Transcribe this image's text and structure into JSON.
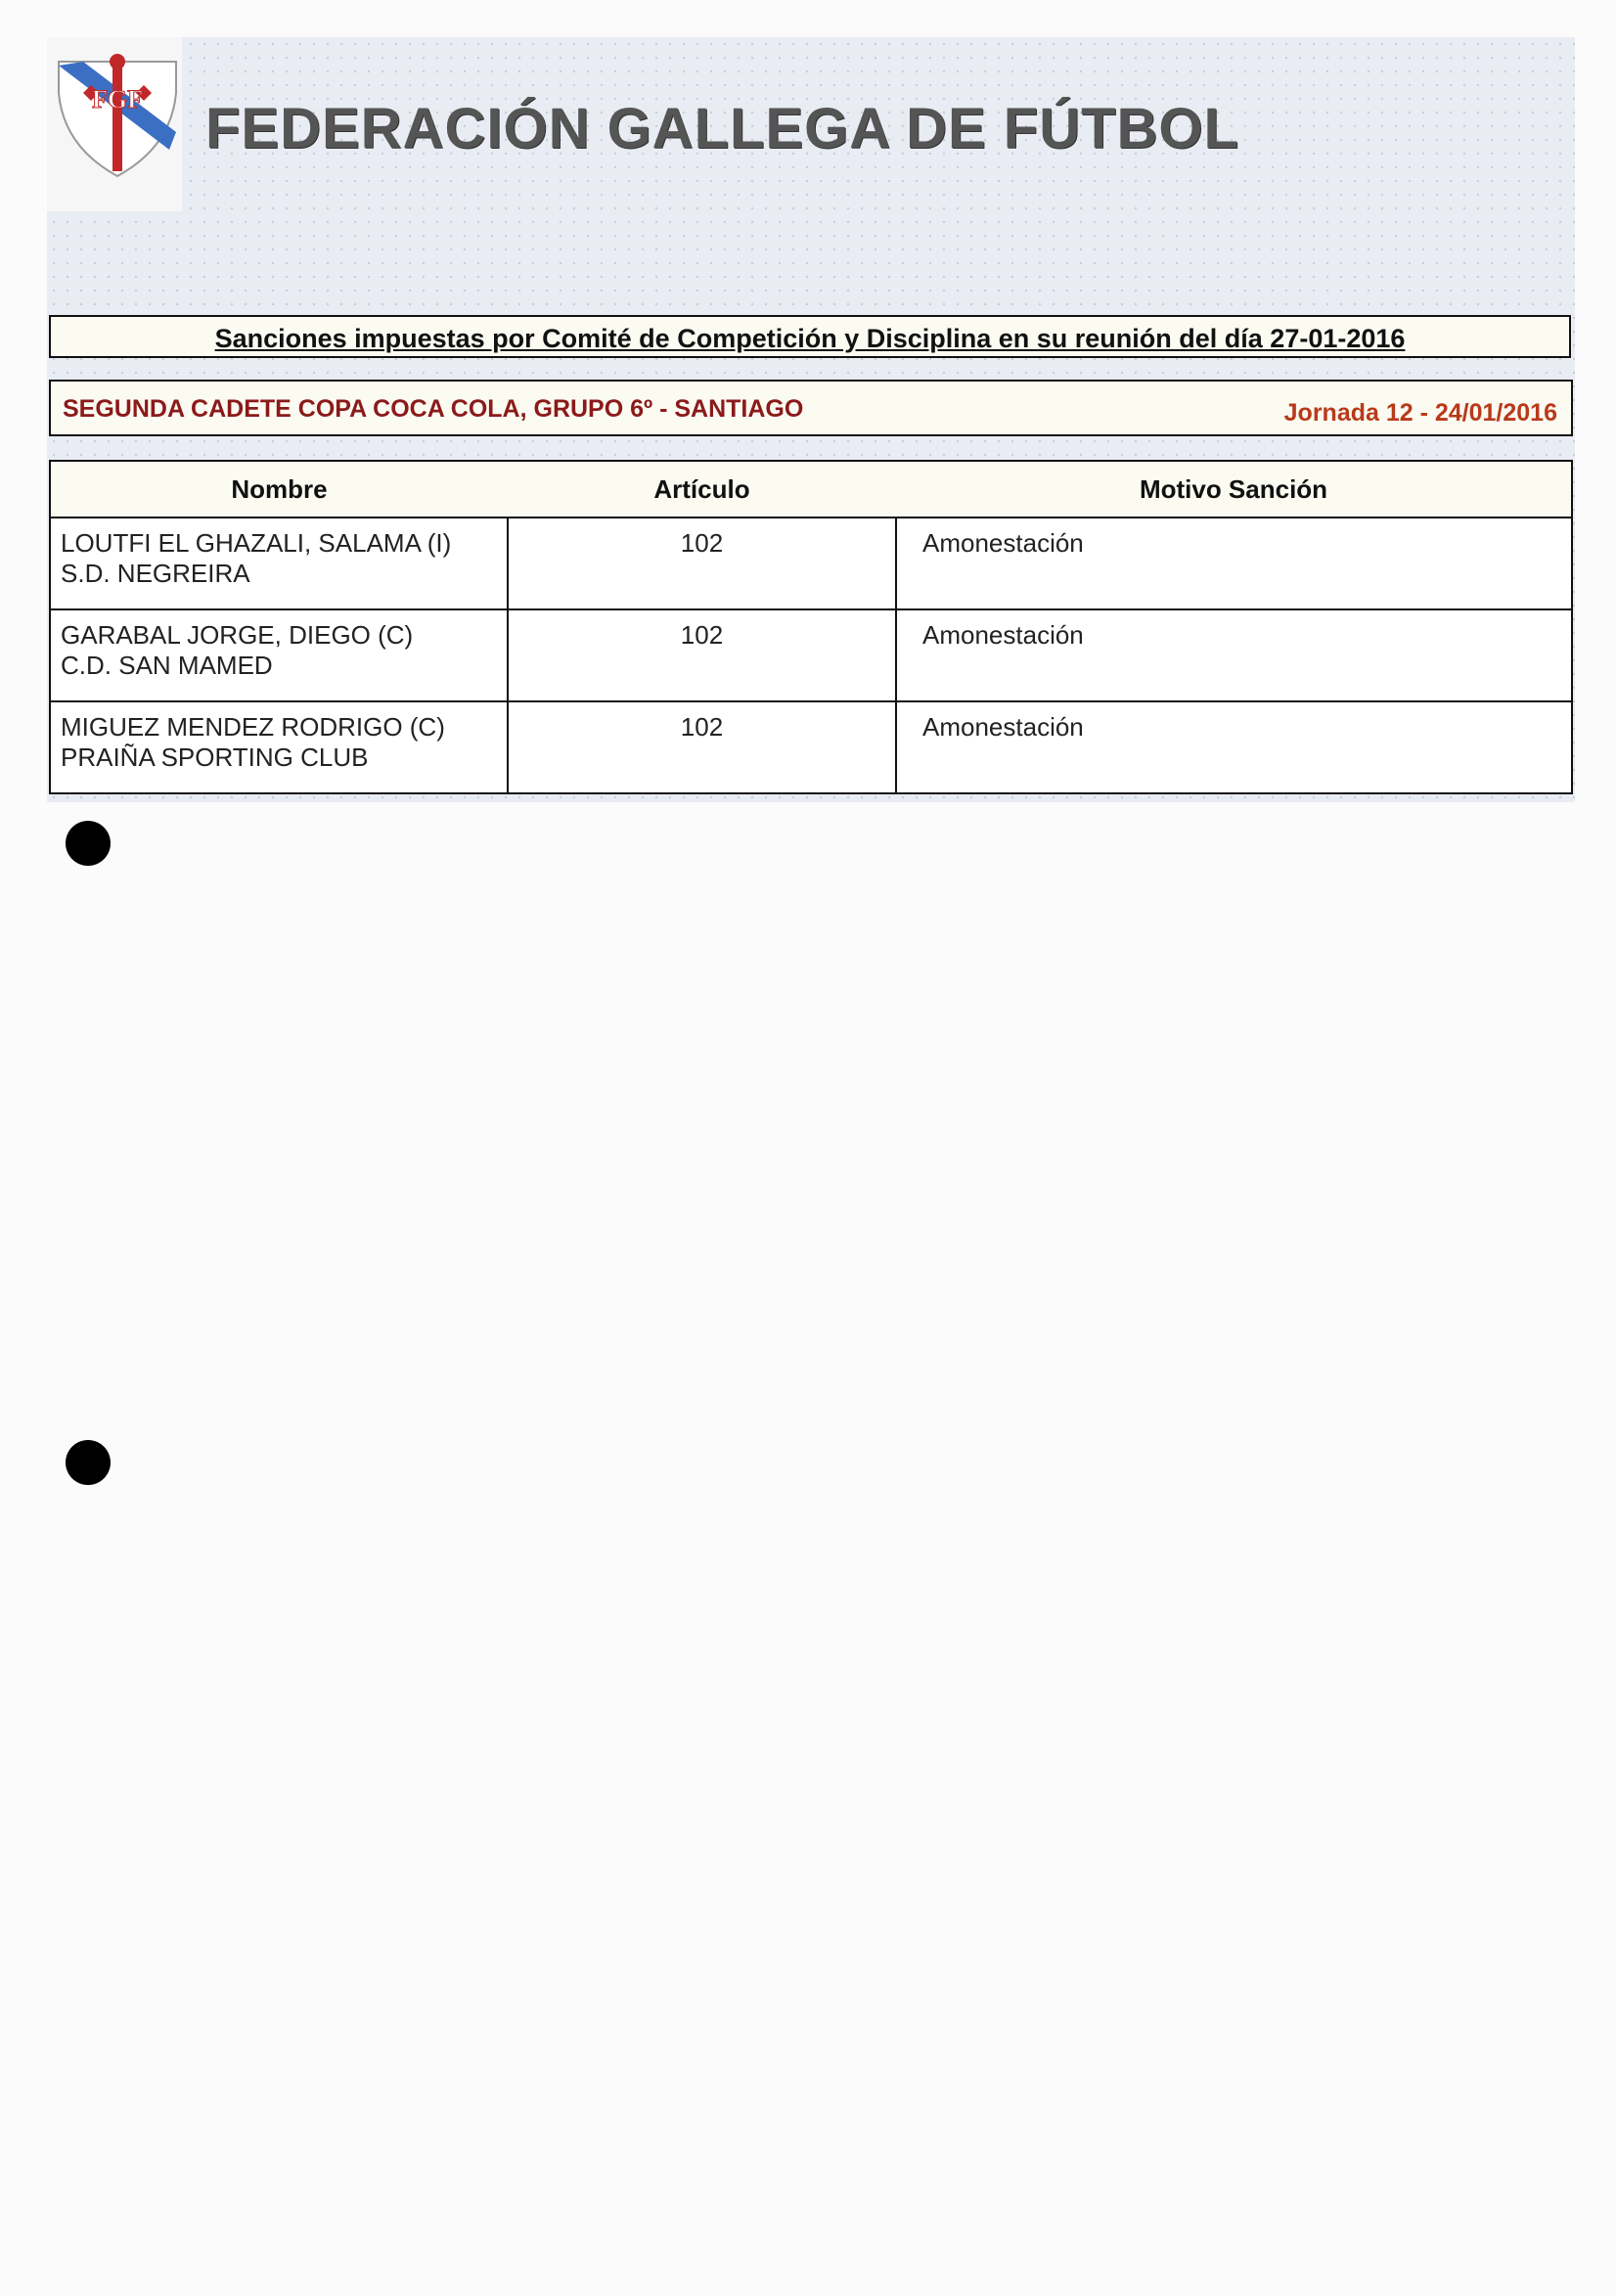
{
  "header": {
    "logo_text": "FGF",
    "title": "FEDERACIÓN GALLEGA DE FÚTBOL"
  },
  "session": {
    "text": "Sanciones impuestas por Comité de Competición y Disciplina en su reunión del día 27-01-2016"
  },
  "competition": {
    "name": "SEGUNDA CADETE COPA COCA COLA,  GRUPO 6º - SANTIAGO",
    "round": "Jornada 12 - 24/01/2016"
  },
  "table": {
    "headers": [
      "Nombre",
      "Artículo",
      "Motivo Sanción"
    ],
    "rows": [
      {
        "player": "LOUTFI EL GHAZALI, SALAMA (I)",
        "club": "S.D. NEGREIRA",
        "article": "102",
        "reason": "Amonestación"
      },
      {
        "player": "GARABAL JORGE, DIEGO (C)",
        "club": "C.D. SAN MAMED",
        "article": "102",
        "reason": "Amonestación"
      },
      {
        "player": "MIGUEZ MENDEZ RODRIGO (C)",
        "club": "PRAIÑA SPORTING CLUB",
        "article": "102",
        "reason": "Amonestación"
      }
    ]
  },
  "colors": {
    "competition": "#8b1a1a",
    "round": "#b83a1a",
    "logo_blue": "#3a6fc4",
    "logo_red": "#c0282a"
  }
}
